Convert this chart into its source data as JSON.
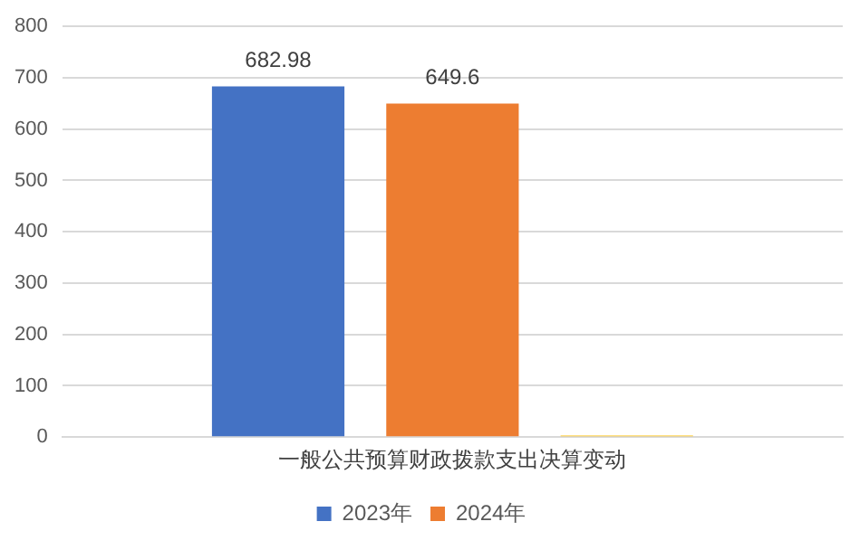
{
  "chart_data": {
    "type": "bar",
    "categories": [
      "一般公共预算财政拨款支出决算变动"
    ],
    "series": [
      {
        "name": "2023年",
        "color": "#4472c4",
        "values": [
          682.98
        ],
        "value_labels": [
          "682.98"
        ]
      },
      {
        "name": "2024年",
        "color": "#ed7d31",
        "values": [
          649.6
        ],
        "value_labels": [
          "649.6"
        ]
      },
      {
        "color": "#ffc000",
        "values": [
          3
        ]
      }
    ],
    "ylim": [
      0,
      800
    ],
    "yticks": [
      0,
      100,
      200,
      300,
      400,
      500,
      600,
      700,
      800
    ],
    "grid": "y",
    "legend": "bottom"
  }
}
